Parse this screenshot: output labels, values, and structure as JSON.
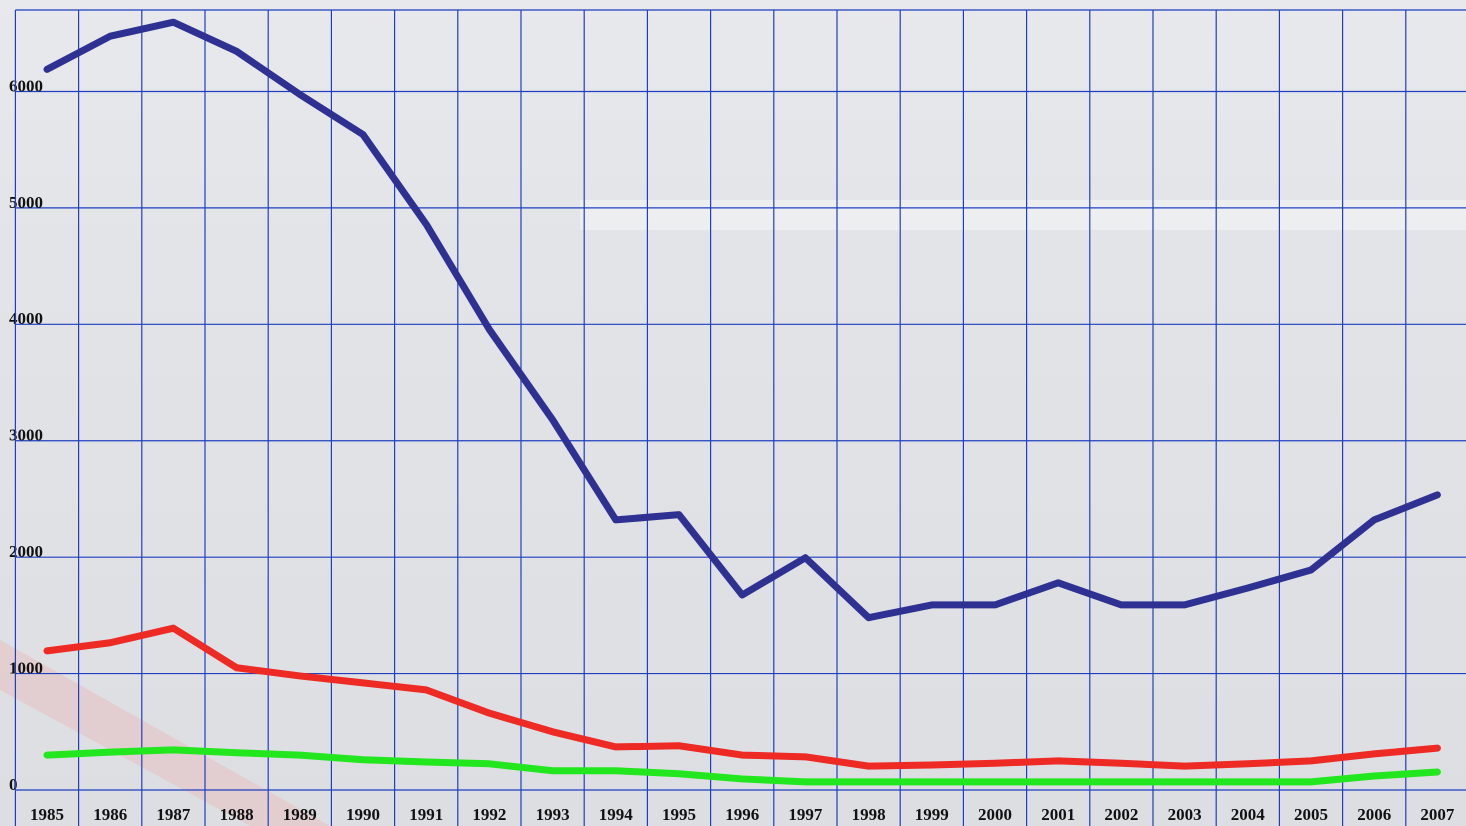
{
  "chart_data": {
    "type": "line",
    "categories": [
      "1985",
      "1986",
      "1987",
      "1988",
      "1989",
      "1990",
      "1991",
      "1992",
      "1993",
      "1994",
      "1995",
      "1996",
      "1997",
      "1998",
      "1999",
      "2000",
      "2001",
      "2002",
      "2003",
      "2004",
      "2005",
      "2006",
      "2007"
    ],
    "series": [
      {
        "color": "#2e3192",
        "values": [
          6190,
          6475,
          6595,
          6345,
          5975,
          5630,
          4860,
          3955,
          3180,
          2320,
          2365,
          1675,
          1995,
          1480,
          1590,
          1590,
          1780,
          1590,
          1590,
          1735,
          1890,
          2320,
          2535
        ]
      },
      {
        "color": "#ee2a24",
        "values": [
          1195,
          1265,
          1390,
          1050,
          980,
          920,
          860,
          660,
          500,
          370,
          380,
          300,
          285,
          205,
          215,
          230,
          250,
          230,
          205,
          225,
          250,
          310,
          360
        ]
      },
      {
        "color": "#22e61e",
        "values": [
          300,
          325,
          345,
          320,
          300,
          260,
          240,
          225,
          165,
          165,
          140,
          95,
          70,
          70,
          70,
          70,
          70,
          70,
          70,
          70,
          70,
          120,
          155
        ]
      }
    ],
    "ylim": [
      0,
      6700
    ],
    "yticks": [
      0,
      1000,
      2000,
      3000,
      4000,
      5000,
      6000
    ],
    "grid": true
  }
}
